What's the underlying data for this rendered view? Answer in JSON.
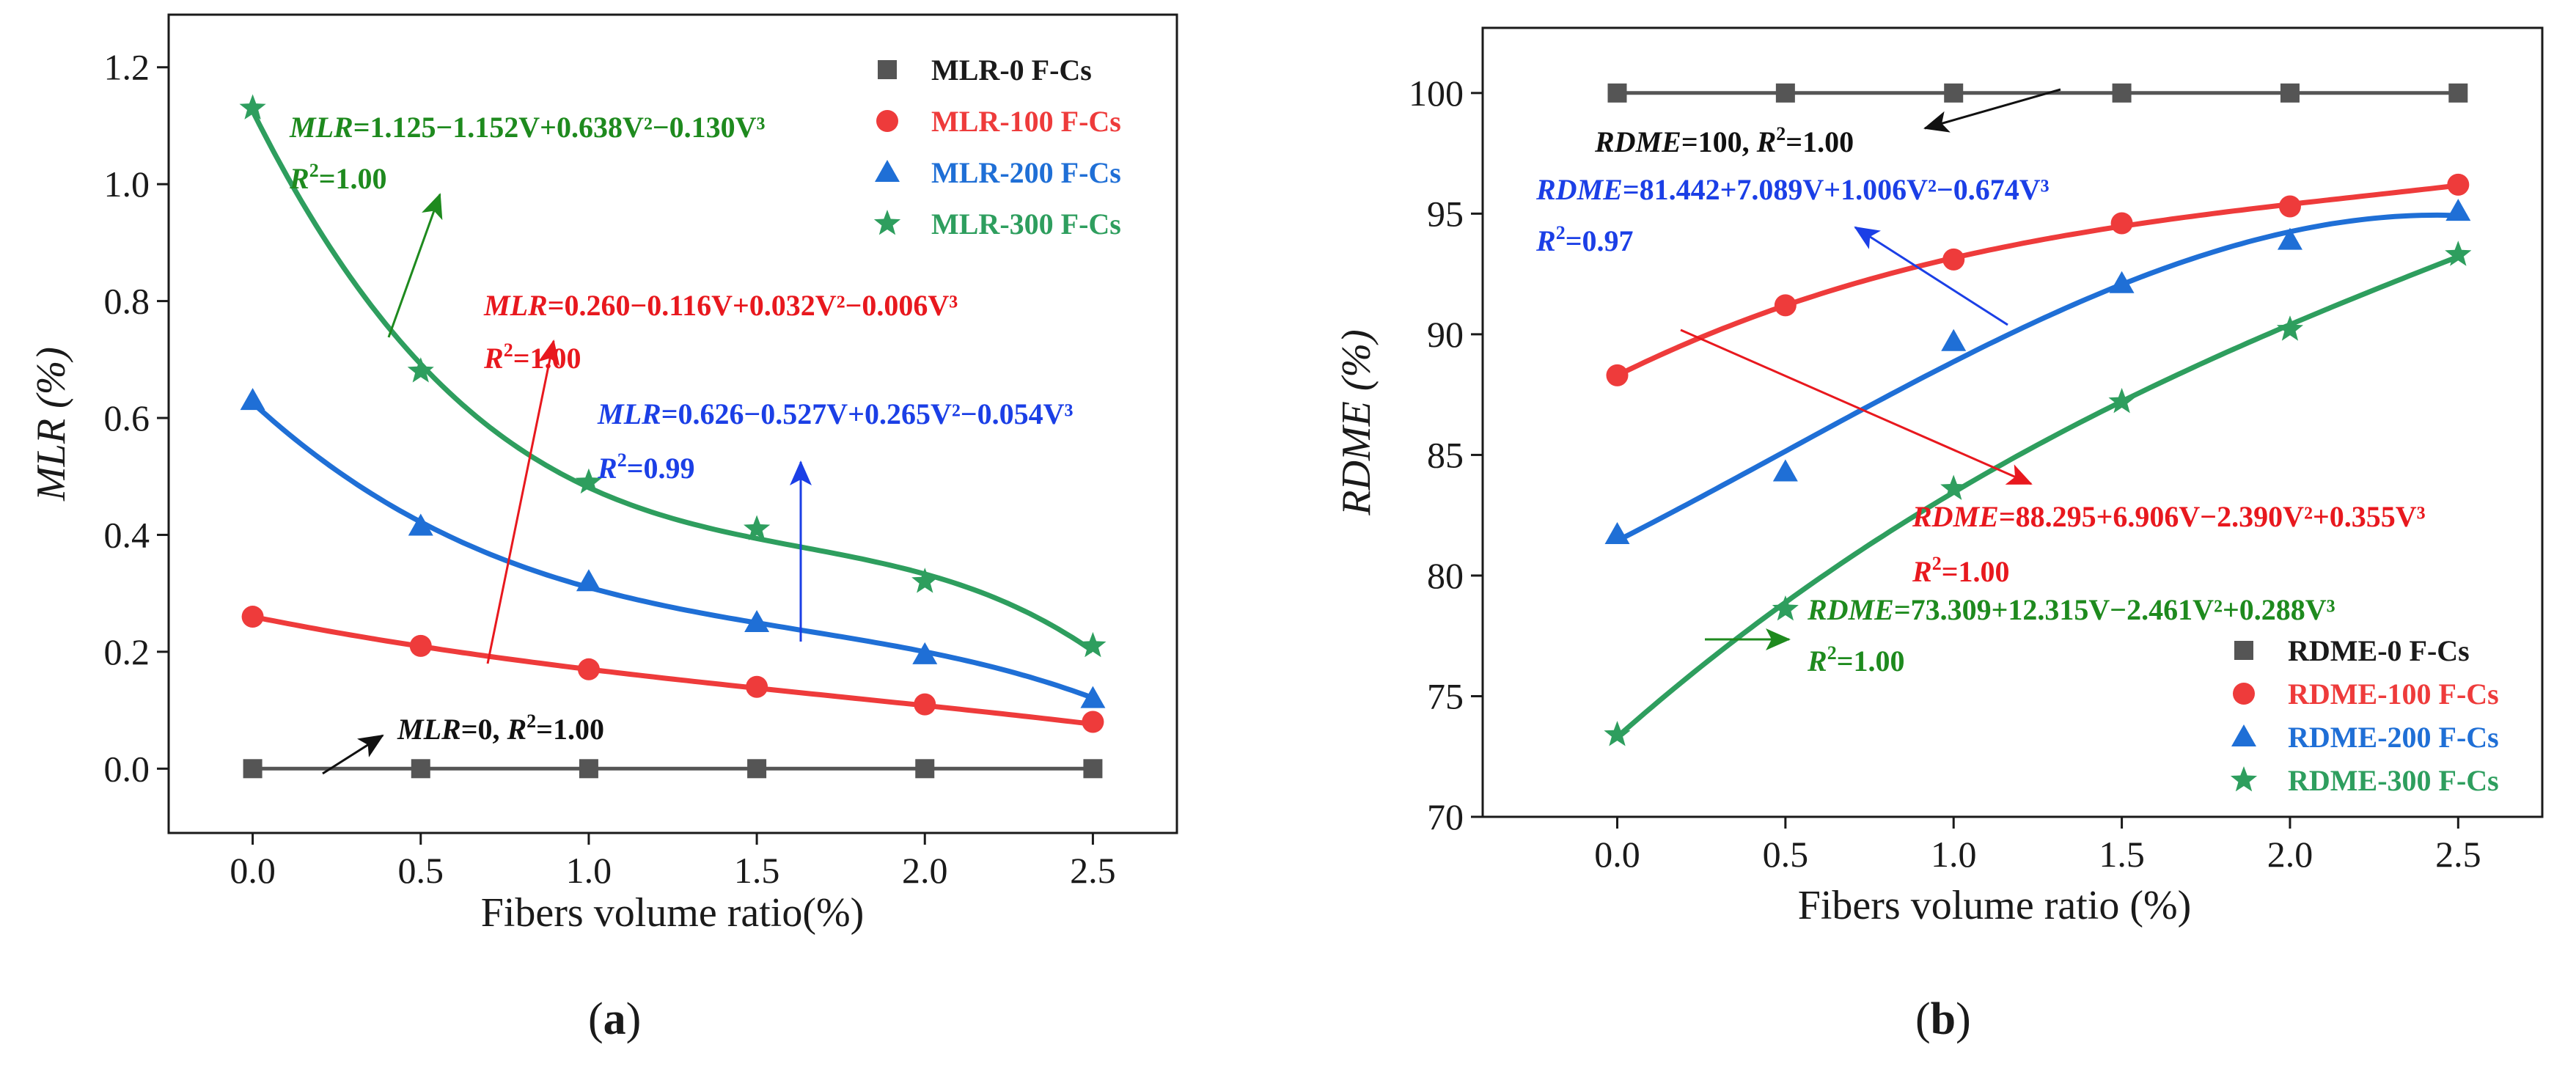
{
  "colors": {
    "s0": "#555555",
    "s100": "#ee3b3b",
    "s200": "#1f6fd6",
    "s300": "#2e9e5e",
    "ann_black": "#111111",
    "ann_red": "#e8181e",
    "ann_blue": "#1b3fe6",
    "ann_green": "#1e8a1e"
  },
  "panel_labels": {
    "a": "a",
    "b": "b"
  },
  "chart_data": [
    {
      "type": "line",
      "panel": "a",
      "xlabel": "Fibers volume ratio(%)",
      "ylabel": "MLR (%)",
      "xlim": [
        -0.25,
        2.75
      ],
      "ylim": [
        -0.11,
        1.29
      ],
      "xticks": [
        "0.0",
        "0.5",
        "1.0",
        "1.5",
        "2.0",
        "2.5"
      ],
      "yticks": [
        "0.0",
        "0.2",
        "0.4",
        "0.6",
        "0.8",
        "1.0",
        "1.2"
      ],
      "x": [
        0,
        0.5,
        1.0,
        1.5,
        2.0,
        2.5
      ],
      "legend_position": "top-right",
      "series": [
        {
          "name": "MLR-0 F-Cs",
          "values": [
            0,
            0,
            0,
            0,
            0,
            0
          ],
          "marker": "square",
          "color_key": "s0",
          "fit": [
            0,
            0,
            0,
            0
          ]
        },
        {
          "name": "MLR-100 F-Cs",
          "values": [
            0.26,
            0.21,
            0.17,
            0.14,
            0.11,
            0.08
          ],
          "marker": "circle",
          "color_key": "s100",
          "fit": [
            0.26,
            -0.116,
            0.032,
            -0.006
          ]
        },
        {
          "name": "MLR-200 F-Cs",
          "values": [
            0.63,
            0.415,
            0.32,
            0.25,
            0.195,
            0.12
          ],
          "marker": "triangle",
          "color_key": "s200",
          "fit": [
            0.626,
            -0.527,
            0.265,
            -0.054
          ]
        },
        {
          "name": "MLR-300 F-Cs",
          "values": [
            1.13,
            0.68,
            0.49,
            0.41,
            0.32,
            0.21
          ],
          "marker": "star",
          "color_key": "s300",
          "fit": [
            1.125,
            -1.152,
            0.638,
            -0.13
          ]
        }
      ],
      "annotations": [
        {
          "id": "a0",
          "pre": "MLR",
          "eq": "=0, ",
          "r2": "=1.00",
          "color_key": "ann_black",
          "inline": true
        },
        {
          "id": "a100",
          "pre": "MLR",
          "eq": "=0.260−0.116V+0.032V²−0.006V³",
          "r2": "=1.00",
          "color_key": "ann_red"
        },
        {
          "id": "a200",
          "pre": "MLR",
          "eq": "=0.626−0.527V+0.265V²−0.054V³",
          "r2": "=0.99",
          "color_key": "ann_blue"
        },
        {
          "id": "a300",
          "pre": "MLR",
          "eq": "=1.125−1.152V+0.638V²−0.130V³",
          "r2": "=1.00",
          "color_key": "ann_green"
        }
      ]
    },
    {
      "type": "line",
      "panel": "b",
      "xlabel": "Fibers volume ratio (%)",
      "ylabel": "RDME (%)",
      "xlim": [
        -0.4,
        2.75
      ],
      "ylim": [
        70,
        102.7
      ],
      "xticks": [
        "0.0",
        "0.5",
        "1.0",
        "1.5",
        "2.0",
        "2.5"
      ],
      "yticks": [
        "70",
        "75",
        "80",
        "85",
        "90",
        "95",
        "100"
      ],
      "x": [
        0,
        0.5,
        1.0,
        1.5,
        2.0,
        2.5
      ],
      "legend_position": "bottom-right",
      "series": [
        {
          "name": "RDME-0 F-Cs",
          "values": [
            100,
            100,
            100,
            100,
            100,
            100
          ],
          "marker": "square",
          "color_key": "s0",
          "fit": [
            100,
            0,
            0,
            0
          ]
        },
        {
          "name": "RDME-100 F-Cs",
          "values": [
            88.3,
            91.2,
            93.1,
            94.6,
            95.3,
            96.2
          ],
          "marker": "circle",
          "color_key": "s100",
          "fit": [
            88.295,
            6.906,
            -2.39,
            0.355
          ]
        },
        {
          "name": "RDME-200 F-Cs",
          "values": [
            81.7,
            84.3,
            89.7,
            92.1,
            93.9,
            95.1
          ],
          "marker": "triangle",
          "color_key": "s200",
          "fit": [
            81.442,
            7.089,
            1.006,
            -0.674
          ]
        },
        {
          "name": "RDME-300 F-Cs",
          "values": [
            73.4,
            78.6,
            83.6,
            87.2,
            90.2,
            93.3
          ],
          "marker": "star",
          "color_key": "s300",
          "fit": [
            73.309,
            12.315,
            -2.461,
            0.288
          ]
        }
      ],
      "annotations": [
        {
          "id": "b0",
          "pre": "RDME",
          "eq": "=100, ",
          "r2": "=1.00",
          "color_key": "ann_black",
          "inline": true
        },
        {
          "id": "b100",
          "pre": "RDME",
          "eq": "=88.295+6.906V−2.390V²+0.355V³",
          "r2": "=1.00",
          "color_key": "ann_red"
        },
        {
          "id": "b200",
          "pre": "RDME",
          "eq": "=81.442+7.089V+1.006V²−0.674V³",
          "r2": "=0.97",
          "color_key": "ann_blue"
        },
        {
          "id": "b300",
          "pre": "RDME",
          "eq": "=73.309+12.315V−2.461V²+0.288V³",
          "r2": "=1.00",
          "color_key": "ann_green"
        }
      ]
    }
  ]
}
